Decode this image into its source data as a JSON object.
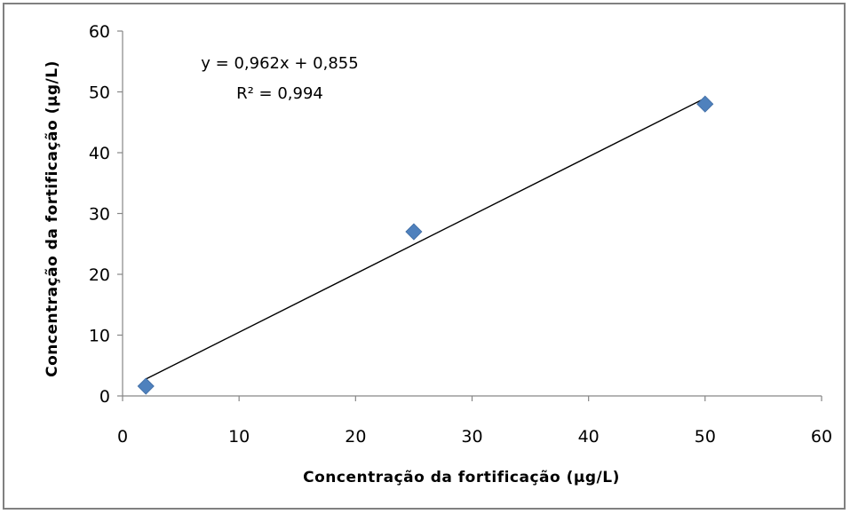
{
  "chart_data": {
    "type": "scatter",
    "title": "",
    "xlabel": "Concentração da fortificação  (µg/L)",
    "ylabel": "Concentração da fortificação  (µg/L)",
    "xlim": [
      0,
      60
    ],
    "ylim": [
      0,
      60
    ],
    "x_ticks": [
      "0",
      "10",
      "20",
      "30",
      "40",
      "50",
      "60"
    ],
    "y_ticks": [
      "0",
      "10",
      "20",
      "30",
      "40",
      "50",
      "60"
    ],
    "grid": false,
    "legend": "none",
    "series": [
      {
        "x": [
          2,
          25,
          50
        ],
        "y": [
          1.6,
          27,
          48
        ],
        "marker": "diamond",
        "color": "#4f81bd"
      }
    ],
    "trendline": {
      "type": "linear",
      "slope": 0.962,
      "intercept": 0.855,
      "x_range": [
        2,
        50
      ],
      "color": "#000000",
      "equation_label": "y = 0,962x + 0,855",
      "r2_label": "R² = 0,994"
    }
  }
}
